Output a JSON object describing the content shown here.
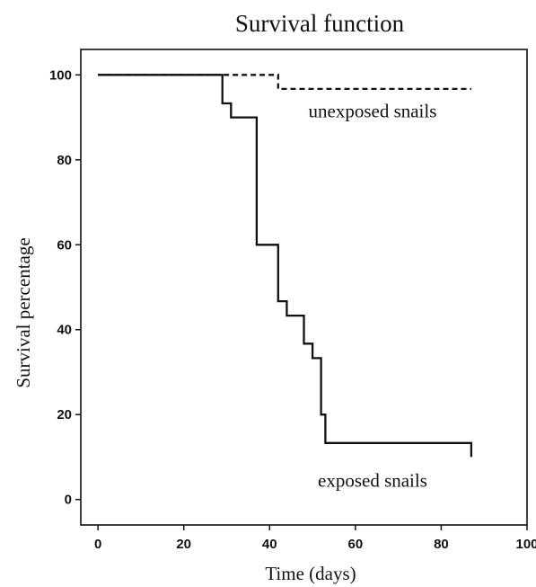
{
  "chart_data": {
    "type": "line",
    "title": "Survival function",
    "xlabel": "Time (days)",
    "ylabel": "Survival percentage",
    "xlim": [
      -4,
      100
    ],
    "ylim": [
      -6,
      106
    ],
    "x_ticks": [
      0,
      20,
      40,
      60,
      80,
      100
    ],
    "y_ticks": [
      0,
      20,
      40,
      60,
      80,
      100
    ],
    "grid": false,
    "series": [
      {
        "name": "unexposed snails",
        "style": "dashed",
        "color": "#111111",
        "x": [
          0,
          42,
          42,
          87
        ],
        "y": [
          100,
          100,
          96.7,
          96.7
        ]
      },
      {
        "name": "exposed snails",
        "style": "solid",
        "color": "#111111",
        "x": [
          0,
          29,
          29,
          31,
          31,
          37,
          37,
          42,
          42,
          44,
          44,
          48,
          48,
          50,
          50,
          52,
          52,
          53,
          53,
          87,
          87
        ],
        "y": [
          100,
          100,
          93.3,
          93.3,
          90,
          90,
          60,
          60,
          46.7,
          46.7,
          43.3,
          43.3,
          36.7,
          36.7,
          33.3,
          33.3,
          20,
          20,
          13.3,
          13.3,
          10
        ]
      }
    ],
    "annotations": [
      {
        "text": "unexposed snails",
        "x": 64,
        "y": 90
      },
      {
        "text": "exposed snails",
        "x": 64,
        "y": 3
      }
    ]
  }
}
